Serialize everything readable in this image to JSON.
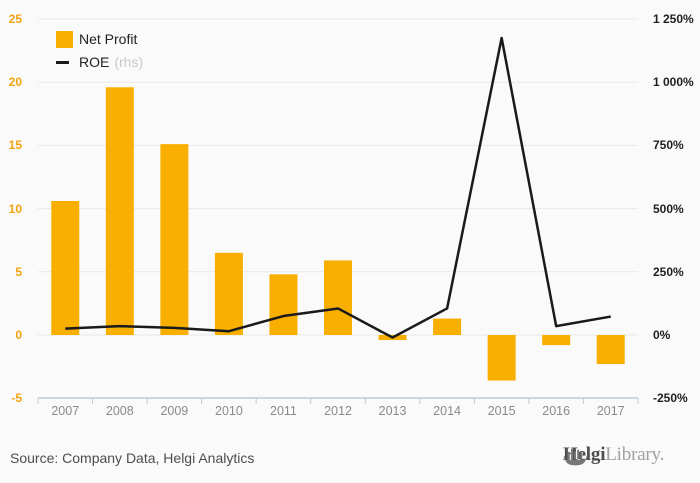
{
  "legend": {
    "net_profit": {
      "label": "Net Profit"
    },
    "roe": {
      "label": "ROE",
      "suffix": "(rhs)"
    }
  },
  "footer": {
    "source": "Source: Company Data, Helgi Analytics",
    "logo_primary": "Helgi",
    "logo_secondary": "Library."
  },
  "chart_data": {
    "type": "bar",
    "title": "",
    "categories": [
      "2007",
      "2008",
      "2009",
      "2010",
      "2011",
      "2012",
      "2013",
      "2014",
      "2015",
      "2016",
      "2017"
    ],
    "series": [
      {
        "name": "Net Profit",
        "type": "bar",
        "axis": "left",
        "color": "#F9AF00",
        "values": [
          10.6,
          19.6,
          15.1,
          6.5,
          4.8,
          5.9,
          -0.4,
          1.3,
          -3.6,
          -0.8,
          -2.3
        ]
      },
      {
        "name": "ROE (rhs)",
        "type": "line",
        "axis": "right",
        "color": "#1A1A1A",
        "values": [
          25,
          35,
          28,
          15,
          75,
          105,
          -10,
          105,
          1175,
          35,
          73
        ]
      }
    ],
    "left_axis": {
      "ticks": [
        25,
        20,
        15,
        10,
        5,
        0,
        -5
      ],
      "range": [
        -5,
        25
      ],
      "label_color": "#F1A40E"
    },
    "right_axis": {
      "tick_labels": [
        "1 250%",
        "1 000%",
        "750%",
        "500%",
        "250%",
        "0%",
        "-250%"
      ],
      "tick_values": [
        1250,
        1000,
        750,
        500,
        250,
        0,
        -250
      ],
      "range": [
        -250,
        1250
      ],
      "unit": "%",
      "label_color": "#1F1F1F"
    },
    "grid": true,
    "legend_position": "top-left",
    "colors": {
      "background": "#FAFAFA",
      "gridline": "#E8E8E8",
      "axis_line": "#BFC9DC"
    }
  }
}
